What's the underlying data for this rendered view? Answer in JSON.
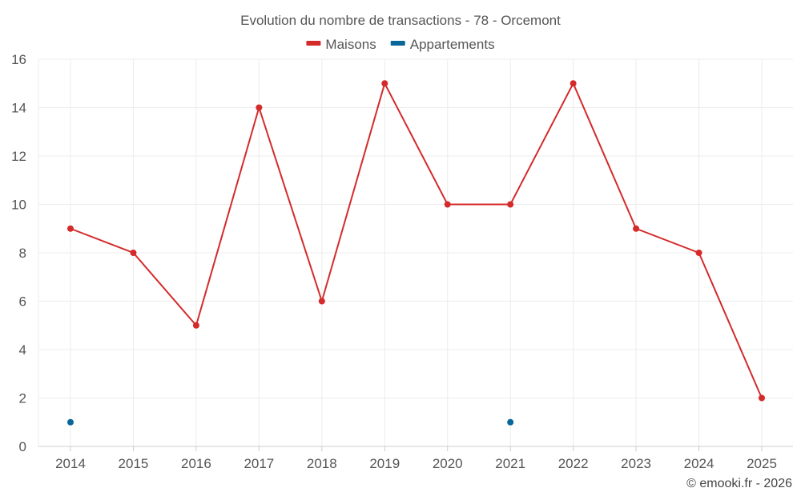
{
  "chart_data": {
    "type": "line",
    "title": "Evolution du nombre de transactions - 78 - Orcemont",
    "credit": "© emooki.fr - 2026",
    "x": [
      "2014",
      "2015",
      "2016",
      "2017",
      "2018",
      "2019",
      "2020",
      "2021",
      "2022",
      "2023",
      "2024",
      "2025"
    ],
    "series": [
      {
        "name": "Maisons",
        "color": "#d42a2a",
        "values": [
          9,
          8,
          5,
          14,
          6,
          15,
          10,
          10,
          15,
          9,
          8,
          2
        ]
      },
      {
        "name": "Appartements",
        "color": "#07669a",
        "values": [
          1,
          null,
          null,
          null,
          null,
          null,
          null,
          1,
          null,
          null,
          null,
          null
        ]
      }
    ],
    "ylim": [
      0,
      16
    ],
    "yticks": [
      0,
      2,
      4,
      6,
      8,
      10,
      12,
      14,
      16
    ],
    "grid": true,
    "legend_position": "top-center"
  }
}
